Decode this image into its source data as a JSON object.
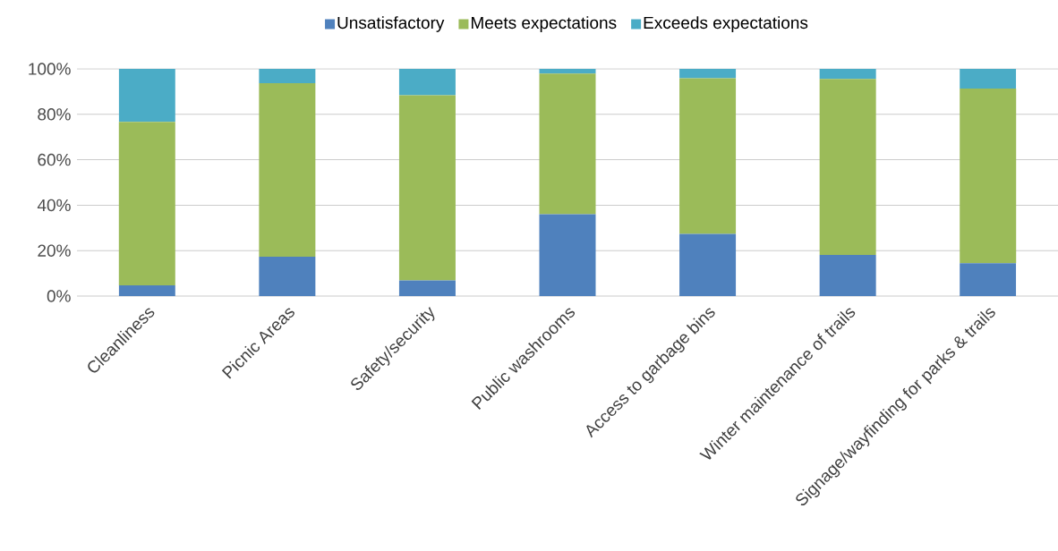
{
  "chart_data": {
    "type": "bar",
    "stacked": true,
    "legend": "top",
    "grid": "y",
    "categories": [
      "Cleanliness",
      "Picnic Areas",
      "Safety/security",
      "Public washrooms",
      "Access to garbage bins",
      "Winter maintenance of trails",
      "Signage/wayfinding for parks & trails"
    ],
    "series": [
      {
        "name": "Unsatisfactory",
        "color": "#4f81bd",
        "values": [
          4.7,
          17.3,
          6.9,
          36.0,
          27.4,
          18.1,
          14.5
        ]
      },
      {
        "name": "Meets expectations",
        "color": "#9bbb59",
        "values": [
          72.0,
          76.4,
          81.5,
          61.9,
          68.5,
          77.5,
          76.8
        ]
      },
      {
        "name": "Exceeds expectations",
        "color": "#4bacc6",
        "values": [
          23.3,
          6.3,
          11.6,
          2.1,
          4.1,
          4.4,
          8.7
        ]
      }
    ],
    "ylim": [
      0,
      100
    ],
    "yticks": [
      {
        "value": 0,
        "label": "0%"
      },
      {
        "value": 20,
        "label": "20%"
      },
      {
        "value": 40,
        "label": "40%"
      },
      {
        "value": 60,
        "label": "60%"
      },
      {
        "value": 80,
        "label": "80%"
      },
      {
        "value": 100,
        "label": "100%"
      }
    ]
  }
}
